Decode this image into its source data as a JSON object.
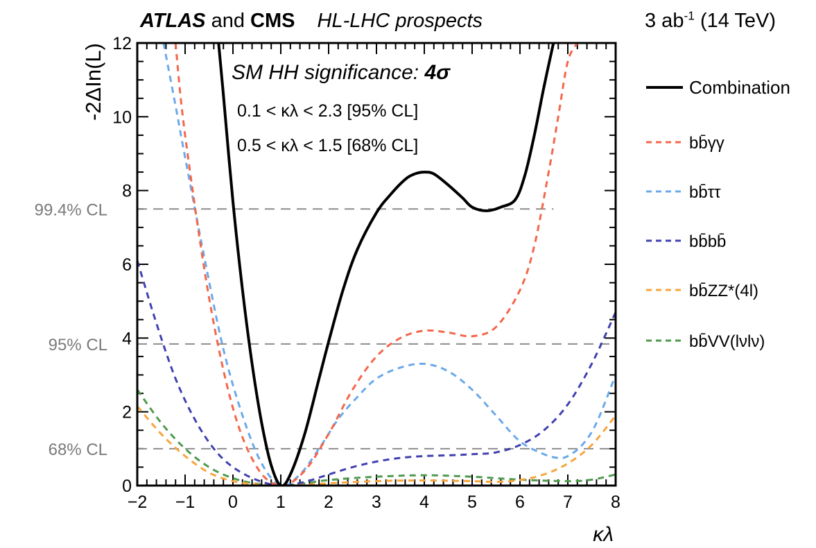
{
  "header": {
    "exp1": "ATLAS",
    "and_text": " and ",
    "exp2": "CMS",
    "subtitle": "HL-LHC prospects",
    "lumi_value": "3 ab",
    "lumi_exp": "-1",
    "lumi_energy": " (14 TeV)"
  },
  "chart_data": {
    "type": "line",
    "xlabel": "κλ",
    "ylabel": "-2ΔIn(L)",
    "xlim": [
      -2,
      8
    ],
    "ylim": [
      0,
      12
    ],
    "xticks": [
      "−2",
      "−1",
      "0",
      "1",
      "2",
      "3",
      "4",
      "5",
      "6",
      "7",
      "8"
    ],
    "yticks": [
      "0",
      "2",
      "4",
      "6",
      "8",
      "10",
      "12"
    ],
    "grid": false,
    "legend_position": "right",
    "annotations": {
      "significance_prefix": "SM HH significance: ",
      "significance_value": "4σ",
      "ci95": "0.1 < κλ < 2.3 [95% CL]",
      "ci68": "0.5 < κλ < 1.5 [68% CL]"
    },
    "cl_lines": [
      {
        "label": "99.4% CL",
        "y": 7.5,
        "x_end": 6.7
      },
      {
        "label": "95% CL",
        "y": 3.84,
        "x_end": 8
      },
      {
        "label": "68% CL",
        "y": 1.0,
        "x_end": 8
      }
    ],
    "series": [
      {
        "name": "Combination",
        "color": "#000000",
        "dashed": false,
        "x": [
          -0.3,
          -0.2,
          0,
          0.2,
          0.4,
          0.6,
          0.8,
          1.0,
          1.2,
          1.5,
          1.8,
          2.0,
          2.3,
          2.6,
          3.0,
          3.3,
          3.6,
          3.8,
          4.0,
          4.2,
          4.5,
          4.8,
          5.0,
          5.3,
          5.6,
          5.9,
          6.1,
          6.3,
          6.5,
          6.7
        ],
        "y": [
          12.0,
          10.6,
          7.7,
          5.3,
          3.3,
          1.7,
          0.55,
          0.0,
          0.3,
          1.4,
          2.9,
          3.9,
          5.3,
          6.4,
          7.4,
          7.9,
          8.3,
          8.45,
          8.5,
          8.45,
          8.15,
          7.8,
          7.55,
          7.45,
          7.55,
          7.75,
          8.4,
          9.5,
          10.8,
          12.0
        ]
      },
      {
        "name": "bb̄γγ",
        "color": "#f4664a",
        "dashed": true,
        "x": [
          -1.2,
          -1.0,
          -0.5,
          0,
          0.5,
          1.0,
          1.5,
          2.0,
          2.5,
          3.0,
          3.5,
          4.0,
          4.5,
          5.0,
          5.5,
          6.0,
          6.3,
          6.6,
          6.8,
          7.0,
          7.2
        ],
        "y": [
          12.0,
          9.5,
          5.1,
          2.1,
          0.5,
          0.0,
          0.4,
          1.4,
          2.6,
          3.5,
          4.0,
          4.2,
          4.15,
          4.05,
          4.3,
          5.3,
          6.5,
          8.5,
          10.0,
          11.5,
          12.0
        ]
      },
      {
        "name": "bb̄ττ",
        "color": "#6aa9ea",
        "dashed": true,
        "x": [
          -1.45,
          -1.2,
          -1.0,
          -0.6,
          -0.2,
          0.2,
          0.6,
          1.0,
          1.4,
          1.8,
          2.2,
          2.6,
          3.0,
          3.5,
          4.0,
          4.5,
          5.0,
          5.5,
          6.0,
          6.5,
          6.8,
          7.0,
          7.3,
          7.6,
          8.0
        ],
        "y": [
          12.0,
          10.3,
          8.9,
          6.2,
          3.7,
          1.9,
          0.6,
          0.0,
          0.3,
          1.0,
          1.8,
          2.4,
          2.9,
          3.2,
          3.3,
          3.1,
          2.6,
          1.9,
          1.2,
          0.85,
          0.75,
          0.8,
          1.1,
          1.7,
          3.0
        ]
      },
      {
        "name": "bb̄bb̄",
        "color": "#4040b0",
        "dashed": true,
        "x": [
          -2.0,
          -1.6,
          -1.2,
          -0.8,
          -0.4,
          0.0,
          0.5,
          1.0,
          1.5,
          2.0,
          2.5,
          3.0,
          3.5,
          4.0,
          4.5,
          5.0,
          5.5,
          6.0,
          6.5,
          7.0,
          7.5,
          8.0
        ],
        "y": [
          6.1,
          4.4,
          2.9,
          1.8,
          1.0,
          0.5,
          0.15,
          0.0,
          0.1,
          0.3,
          0.5,
          0.65,
          0.75,
          0.8,
          0.82,
          0.85,
          0.9,
          1.1,
          1.5,
          2.2,
          3.3,
          4.7
        ]
      },
      {
        "name": "bb̄ZZ*(4l)",
        "color": "#f7a53c",
        "dashed": true,
        "x": [
          -2.0,
          -1.5,
          -1.0,
          -0.5,
          0.0,
          0.5,
          1.0,
          1.5,
          2.0,
          3.0,
          4.0,
          5.0,
          5.5,
          6.0,
          6.5,
          7.0,
          7.5,
          8.0
        ],
        "y": [
          2.15,
          1.4,
          0.8,
          0.35,
          0.12,
          0.03,
          0.0,
          0.02,
          0.06,
          0.12,
          0.14,
          0.12,
          0.1,
          0.15,
          0.3,
          0.6,
          1.1,
          1.9
        ]
      },
      {
        "name": "bb̄VV(lνlν)",
        "color": "#4e9a4e",
        "dashed": true,
        "x": [
          -2.0,
          -1.5,
          -1.0,
          -0.5,
          0.0,
          0.5,
          1.0,
          1.5,
          2.0,
          3.0,
          4.0,
          5.0,
          6.0,
          7.0,
          7.5,
          8.0
        ],
        "y": [
          2.6,
          1.7,
          1.0,
          0.5,
          0.2,
          0.05,
          0.0,
          0.06,
          0.15,
          0.24,
          0.28,
          0.24,
          0.16,
          0.12,
          0.16,
          0.3
        ]
      }
    ]
  }
}
